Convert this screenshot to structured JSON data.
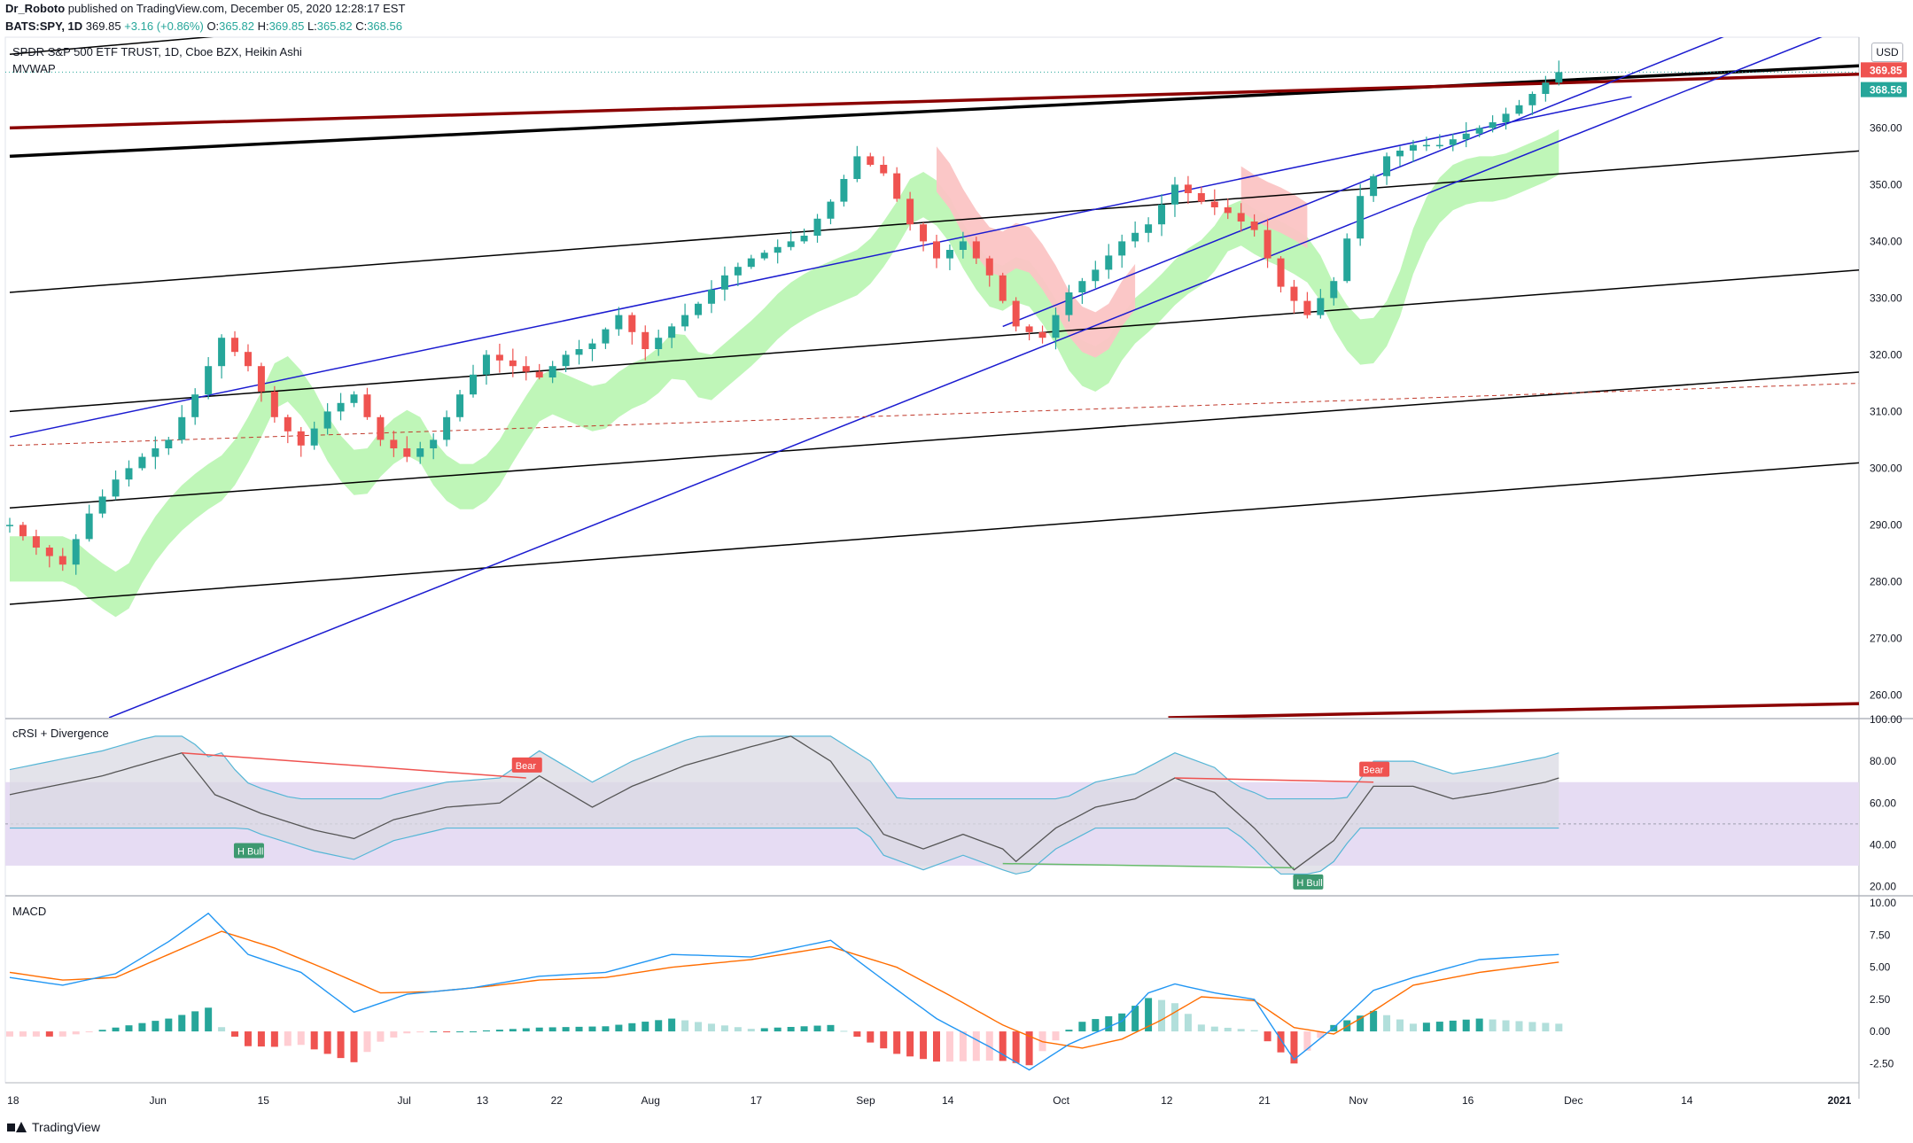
{
  "header": {
    "author": "Dr_Roboto",
    "published": "published on TradingView.com, December 05, 2020 12:28:17 EST",
    "symbol": "BATS:SPY, 1D",
    "last": "369.85",
    "change": "+3.16 (+0.86%)",
    "o_label": "O:",
    "o": "365.82",
    "h_label": "H:",
    "h": "369.85",
    "l_label": "L:",
    "l": "365.82",
    "c_label": "C:",
    "c": "368.56"
  },
  "main_pane": {
    "title": "SPDR S&P 500 ETF TRUST, 1D, Cboe BZX, Heikin Ashi",
    "indicator": "MVWAP",
    "currency": "USD"
  },
  "rsi_pane": {
    "title": "cRSI + Divergence"
  },
  "macd_pane": {
    "title": "MACD"
  },
  "footer": {
    "brand": "TradingView"
  },
  "colors": {
    "up": "#26a69a",
    "down": "#ef5350",
    "trend_blue": "#1b1bd0",
    "dark_red": "#8b0000",
    "band_green": "#b8f5b0",
    "band_red": "#fbc4c4",
    "rsi_fill": "#e6dcf3",
    "macd_line": "#2196f3",
    "signal_line": "#ff6d00"
  },
  "chart_data": [
    {
      "type": "candlestick",
      "title": "SPDR S&P 500 ETF TRUST, 1D, Cboe BZX, Heikin Ashi",
      "x_ticks": [
        "18",
        "Jun",
        "15",
        "Jul",
        "13",
        "22",
        "Aug",
        "17",
        "Sep",
        "14",
        "Oct",
        "12",
        "21",
        "Nov",
        "16",
        "Dec",
        "14",
        "2021"
      ],
      "y_ticks": [
        "260.00",
        "270.00",
        "280.00",
        "290.00",
        "300.00",
        "310.00",
        "320.00",
        "330.00",
        "340.00",
        "350.00",
        "360.00"
      ],
      "ylim": [
        256,
        376
      ],
      "price_labels": [
        {
          "value": "369.85",
          "color": "#ef5350"
        },
        {
          "value": "368.56",
          "color": "#26a69a"
        }
      ],
      "close_path": [
        [
          0,
          290
        ],
        [
          4,
          286
        ],
        [
          8,
          283
        ],
        [
          12,
          292
        ],
        [
          16,
          298
        ],
        [
          20,
          302
        ],
        [
          24,
          305
        ],
        [
          28,
          313
        ],
        [
          32,
          323
        ],
        [
          36,
          318
        ],
        [
          40,
          309
        ],
        [
          44,
          304
        ],
        [
          48,
          310
        ],
        [
          52,
          313
        ],
        [
          56,
          305
        ],
        [
          60,
          302
        ],
        [
          64,
          305
        ],
        [
          68,
          313
        ],
        [
          72,
          320
        ],
        [
          76,
          318
        ],
        [
          80,
          316
        ],
        [
          84,
          320
        ],
        [
          88,
          322
        ],
        [
          92,
          327
        ],
        [
          96,
          321
        ],
        [
          100,
          325
        ],
        [
          104,
          329
        ],
        [
          108,
          334
        ],
        [
          112,
          337
        ],
        [
          116,
          339
        ],
        [
          120,
          341
        ],
        [
          124,
          347
        ],
        [
          128,
          355
        ],
        [
          132,
          352
        ],
        [
          136,
          343
        ],
        [
          140,
          337
        ],
        [
          144,
          340
        ],
        [
          148,
          334
        ],
        [
          152,
          325
        ],
        [
          156,
          323
        ],
        [
          160,
          331
        ],
        [
          164,
          335
        ],
        [
          168,
          340
        ],
        [
          172,
          343
        ],
        [
          176,
          350
        ],
        [
          180,
          347
        ],
        [
          184,
          345
        ],
        [
          188,
          342
        ],
        [
          192,
          332
        ],
        [
          196,
          327
        ],
        [
          200,
          333
        ],
        [
          204,
          348
        ],
        [
          208,
          355
        ],
        [
          212,
          357
        ],
        [
          216,
          357
        ],
        [
          220,
          359
        ],
        [
          224,
          361
        ],
        [
          228,
          364
        ],
        [
          232,
          368
        ],
        [
          234,
          369.85
        ]
      ],
      "candle_volatility": 1.2
    },
    {
      "type": "line",
      "title": "cRSI + Divergence",
      "y_ticks": [
        "20.00",
        "40.00",
        "60.00",
        "80.00",
        "100.00"
      ],
      "ylim": [
        16,
        100
      ],
      "labels": [
        "Bear",
        "H Bull",
        "Bear",
        "H Bull"
      ],
      "series": [
        {
          "values": [
            [
              0,
              64
            ],
            [
              14,
              73
            ],
            [
              26,
              84
            ],
            [
              31,
              64
            ],
            [
              38,
              55
            ],
            [
              46,
              47
            ],
            [
              52,
              43
            ],
            [
              58,
              52
            ],
            [
              66,
              58
            ],
            [
              74,
              60
            ],
            [
              80,
              73
            ],
            [
              88,
              58
            ],
            [
              94,
              68
            ],
            [
              102,
              78
            ],
            [
              112,
              87
            ],
            [
              118,
              92
            ],
            [
              124,
              80
            ],
            [
              132,
              45
            ],
            [
              138,
              38
            ],
            [
              144,
              45
            ],
            [
              150,
              38
            ],
            [
              152,
              32
            ],
            [
              158,
              48
            ],
            [
              164,
              58
            ],
            [
              170,
              62
            ],
            [
              176,
              72
            ],
            [
              182,
              65
            ],
            [
              188,
              48
            ],
            [
              194,
              28
            ],
            [
              200,
              42
            ],
            [
              206,
              68
            ],
            [
              212,
              68
            ],
            [
              218,
              62
            ],
            [
              224,
              65
            ],
            [
              232,
              70
            ],
            [
              234,
              72
            ]
          ]
        }
      ]
    },
    {
      "type": "line",
      "title": "MACD",
      "y_ticks": [
        "-2.50",
        "0.00",
        "2.50",
        "5.00",
        "7.50",
        "10.00"
      ],
      "ylim": [
        -4,
        10.5
      ],
      "series": [
        {
          "values": [
            [
              0,
              4.2
            ],
            [
              8,
              3.6
            ],
            [
              16,
              4.5
            ],
            [
              24,
              7.0
            ],
            [
              30,
              9.2
            ],
            [
              36,
              6.0
            ],
            [
              44,
              4.6
            ],
            [
              52,
              1.5
            ],
            [
              60,
              2.9
            ],
            [
              70,
              3.4
            ],
            [
              80,
              4.3
            ],
            [
              90,
              4.6
            ],
            [
              100,
              6.0
            ],
            [
              112,
              5.8
            ],
            [
              124,
              7.1
            ],
            [
              132,
              4.0
            ],
            [
              140,
              1.0
            ],
            [
              148,
              -1.2
            ],
            [
              154,
              -3.0
            ],
            [
              160,
              -1.0
            ],
            [
              168,
              0.8
            ],
            [
              172,
              3.0
            ],
            [
              176,
              3.7
            ],
            [
              182,
              3.0
            ],
            [
              188,
              2.5
            ],
            [
              194,
              -2.2
            ],
            [
              200,
              0.3
            ],
            [
              206,
              3.2
            ],
            [
              212,
              4.2
            ],
            [
              222,
              5.6
            ],
            [
              234,
              6.0
            ]
          ]
        },
        {
          "values": [
            [
              0,
              4.6
            ],
            [
              8,
              4.0
            ],
            [
              16,
              4.2
            ],
            [
              24,
              6.0
            ],
            [
              32,
              7.8
            ],
            [
              40,
              6.5
            ],
            [
              48,
              4.8
            ],
            [
              56,
              3.0
            ],
            [
              64,
              3.1
            ],
            [
              72,
              3.5
            ],
            [
              80,
              4.0
            ],
            [
              90,
              4.2
            ],
            [
              100,
              5.0
            ],
            [
              112,
              5.6
            ],
            [
              124,
              6.6
            ],
            [
              134,
              5.0
            ],
            [
              142,
              2.8
            ],
            [
              150,
              0.5
            ],
            [
              156,
              -0.8
            ],
            [
              162,
              -1.3
            ],
            [
              168,
              -0.6
            ],
            [
              174,
              0.9
            ],
            [
              180,
              2.7
            ],
            [
              188,
              2.4
            ],
            [
              194,
              0.3
            ],
            [
              200,
              -0.2
            ],
            [
              206,
              1.6
            ],
            [
              212,
              3.6
            ],
            [
              222,
              4.6
            ],
            [
              234,
              5.4
            ]
          ]
        }
      ]
    }
  ]
}
